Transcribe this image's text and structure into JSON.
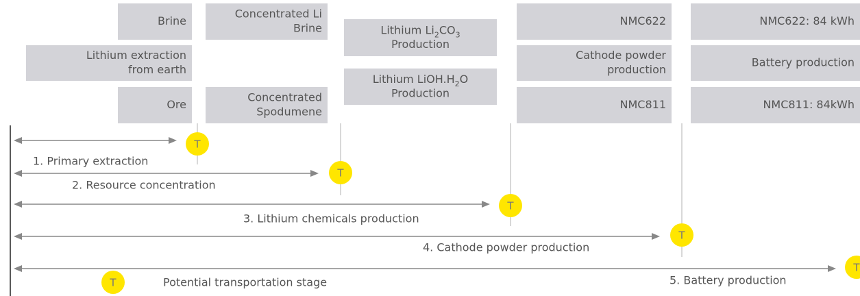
{
  "boxes": [
    {
      "lines": [
        "Brine"
      ]
    },
    {
      "lines": [
        "Lithium extraction",
        "from earth"
      ]
    },
    {
      "lines": [
        "Ore"
      ]
    },
    {
      "lines": [
        "Concentrated Li",
        "Brine"
      ]
    },
    {
      "lines": [
        "Concentrated",
        "Spodumene"
      ]
    },
    {
      "lines": [
        [
          "Lithium Li",
          "2",
          "CO",
          "3"
        ],
        "Production"
      ]
    },
    {
      "lines": [
        [
          "Lithium LiOH.H",
          "2",
          "O"
        ],
        "Production"
      ]
    },
    {
      "lines": [
        "NMC622"
      ]
    },
    {
      "lines": [
        "Cathode powder",
        "production"
      ]
    },
    {
      "lines": [
        "NMC811"
      ]
    },
    {
      "lines": [
        "NMC622: 84 kWh"
      ]
    },
    {
      "lines": [
        "Battery production"
      ]
    },
    {
      "lines": [
        "NMC811: 84kWh"
      ]
    }
  ],
  "stages": [
    {
      "label": "1. Primary extraction",
      "marker": "T"
    },
    {
      "label": "2. Resource concentration",
      "marker": "T"
    },
    {
      "label": "3. Lithium chemicals production",
      "marker": "T"
    },
    {
      "label": "4. Cathode powder production",
      "marker": "T"
    },
    {
      "label": "5. Battery production",
      "marker": "T"
    }
  ],
  "legend": {
    "marker": "T",
    "label": "Potential transportation stage"
  }
}
